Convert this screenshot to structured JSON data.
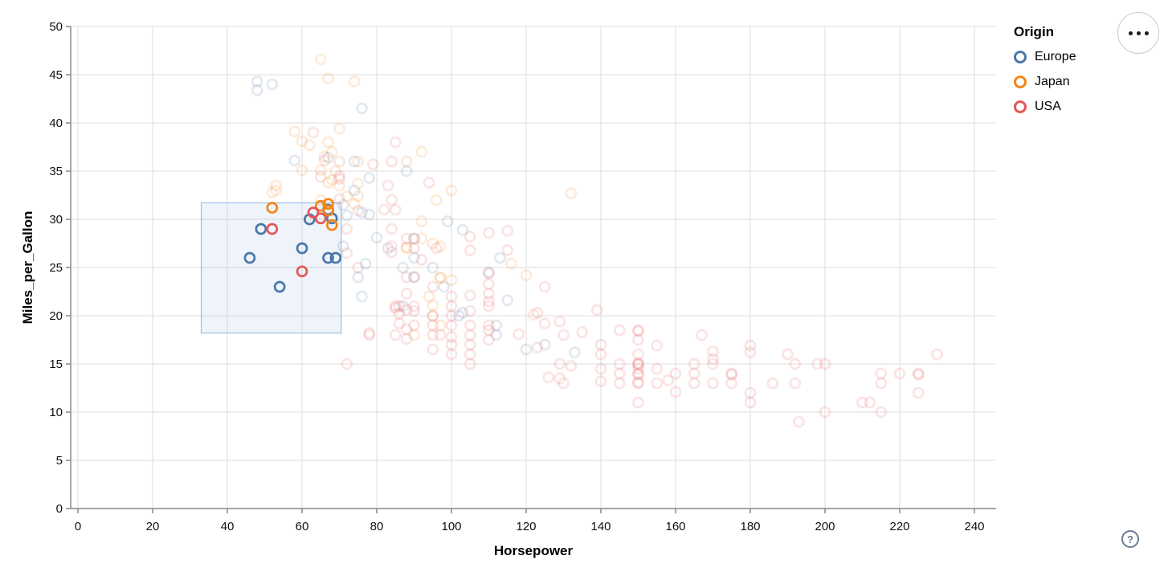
{
  "axes": {
    "x": {
      "title": "Horsepower",
      "ticks": [
        0,
        20,
        40,
        60,
        80,
        100,
        120,
        140,
        160,
        180,
        200,
        220,
        240
      ]
    },
    "y": {
      "title": "Miles_per_Gallon",
      "ticks": [
        0,
        5,
        10,
        15,
        20,
        25,
        30,
        35,
        40,
        45,
        50
      ]
    }
  },
  "legend": {
    "title": "Origin",
    "items": [
      {
        "label": "Europe",
        "color": "#4c78a8"
      },
      {
        "label": "Japan",
        "color": "#f58518"
      },
      {
        "label": "USA",
        "color": "#e45756"
      }
    ]
  },
  "controls": {
    "menu_label": "•••",
    "help_label": "?"
  },
  "chart_data": {
    "type": "scatter",
    "x_field": "Horsepower",
    "y_field": "Miles_per_Gallon",
    "xlim": [
      0,
      240
    ],
    "ylim": [
      0,
      50
    ],
    "grid": true,
    "legend_position": "right",
    "origin_colors": {
      "E": "#4c78a8",
      "J": "#f58518",
      "U": "#e45756"
    },
    "origin_names": {
      "E": "Europe",
      "J": "Japan",
      "U": "USA"
    },
    "brush": {
      "x": [
        33,
        70.5
      ],
      "y": [
        18.2,
        31.7
      ],
      "fill": "#7ba7dc",
      "stroke": "#90b4e4"
    },
    "unselected_opacity": 0.16,
    "point_format": [
      "Horsepower",
      "Miles_per_Gallon",
      "origin",
      "selected"
    ],
    "points": [
      [
        46,
        26,
        "E",
        1
      ],
      [
        49,
        29,
        "E",
        1
      ],
      [
        54,
        23,
        "E",
        1
      ],
      [
        60,
        27,
        "E",
        1
      ],
      [
        62,
        30,
        "E",
        1
      ],
      [
        67,
        31,
        "E",
        1
      ],
      [
        68,
        30.1,
        "E",
        1
      ],
      [
        67,
        26,
        "E",
        1
      ],
      [
        69,
        26,
        "E",
        1
      ],
      [
        52,
        31.2,
        "J",
        1
      ],
      [
        65,
        31.4,
        "J",
        1
      ],
      [
        67,
        31.6,
        "J",
        1
      ],
      [
        67,
        30.9,
        "J",
        1
      ],
      [
        68,
        29.4,
        "J",
        1
      ],
      [
        52,
        29,
        "U",
        1
      ],
      [
        60,
        24.6,
        "U",
        1
      ],
      [
        63,
        30.7,
        "U",
        1
      ],
      [
        65,
        30.1,
        "U",
        1
      ],
      [
        48,
        44.3,
        "E",
        0
      ],
      [
        52,
        44,
        "E",
        0
      ],
      [
        48,
        43.4,
        "E",
        0
      ],
      [
        76,
        41.5,
        "E",
        0
      ],
      [
        74,
        36,
        "E",
        0
      ],
      [
        58,
        36.1,
        "E",
        0
      ],
      [
        67,
        36.4,
        "E",
        0
      ],
      [
        88,
        35,
        "E",
        0
      ],
      [
        78,
        34.3,
        "E",
        0
      ],
      [
        74,
        33,
        "E",
        0
      ],
      [
        71,
        31.5,
        "E",
        0
      ],
      [
        76,
        30.7,
        "E",
        0
      ],
      [
        78,
        30.5,
        "E",
        0
      ],
      [
        72,
        30.4,
        "E",
        0
      ],
      [
        80,
        28.1,
        "E",
        0
      ],
      [
        90,
        28,
        "E",
        0
      ],
      [
        83,
        27,
        "E",
        0
      ],
      [
        71,
        27.2,
        "E",
        0
      ],
      [
        87,
        25,
        "E",
        0
      ],
      [
        90,
        24,
        "E",
        0
      ],
      [
        95,
        25,
        "E",
        0
      ],
      [
        113,
        26,
        "E",
        0
      ],
      [
        90,
        26,
        "E",
        0
      ],
      [
        75,
        24,
        "E",
        0
      ],
      [
        76,
        22,
        "E",
        0
      ],
      [
        87,
        21,
        "E",
        0
      ],
      [
        110,
        24.5,
        "E",
        0
      ],
      [
        103,
        20.3,
        "E",
        0
      ],
      [
        102,
        20,
        "E",
        0
      ],
      [
        98,
        23,
        "E",
        0
      ],
      [
        115,
        21.6,
        "E",
        0
      ],
      [
        120,
        16.5,
        "E",
        0
      ],
      [
        133,
        16.2,
        "E",
        0
      ],
      [
        125,
        17,
        "E",
        0
      ],
      [
        112,
        18,
        "E",
        0
      ],
      [
        112,
        19,
        "E",
        0
      ],
      [
        77,
        25.4,
        "E",
        0
      ],
      [
        99,
        29.8,
        "E",
        0
      ],
      [
        103,
        28.9,
        "E",
        0
      ],
      [
        65,
        46.6,
        "J",
        0
      ],
      [
        67,
        44.6,
        "J",
        0
      ],
      [
        74,
        44.3,
        "J",
        0
      ],
      [
        70,
        39.4,
        "J",
        0
      ],
      [
        58,
        39.1,
        "J",
        0
      ],
      [
        62,
        37.7,
        "J",
        0
      ],
      [
        60,
        38.1,
        "J",
        0
      ],
      [
        67,
        38,
        "J",
        0
      ],
      [
        66,
        36.5,
        "J",
        0
      ],
      [
        75,
        36,
        "J",
        0
      ],
      [
        68,
        37,
        "J",
        0
      ],
      [
        88,
        36,
        "J",
        0
      ],
      [
        92,
        37,
        "J",
        0
      ],
      [
        69,
        35,
        "J",
        0
      ],
      [
        60,
        35.1,
        "J",
        0
      ],
      [
        65,
        35.1,
        "J",
        0
      ],
      [
        75,
        33.7,
        "J",
        0
      ],
      [
        67,
        33.8,
        "J",
        0
      ],
      [
        53,
        33,
        "J",
        0
      ],
      [
        53,
        33.5,
        "J",
        0
      ],
      [
        52,
        32.8,
        "J",
        0
      ],
      [
        68,
        34.1,
        "J",
        0
      ],
      [
        75,
        32.4,
        "J",
        0
      ],
      [
        72,
        32.4,
        "J",
        0
      ],
      [
        96,
        32,
        "J",
        0
      ],
      [
        100,
        33,
        "J",
        0
      ],
      [
        132,
        32.7,
        "J",
        0
      ],
      [
        65,
        32,
        "J",
        0
      ],
      [
        70,
        33.5,
        "J",
        0
      ],
      [
        74,
        31.6,
        "J",
        0
      ],
      [
        92,
        29.8,
        "J",
        0
      ],
      [
        92,
        28,
        "J",
        0
      ],
      [
        88,
        27,
        "J",
        0
      ],
      [
        88,
        27.1,
        "J",
        0
      ],
      [
        97,
        27.2,
        "J",
        0
      ],
      [
        95,
        27.5,
        "J",
        0
      ],
      [
        97,
        24,
        "J",
        0
      ],
      [
        94,
        22,
        "J",
        0
      ],
      [
        100,
        23.7,
        "J",
        0
      ],
      [
        95,
        21.1,
        "J",
        0
      ],
      [
        97,
        23.9,
        "J",
        0
      ],
      [
        95,
        20,
        "J",
        0
      ],
      [
        90,
        18,
        "J",
        0
      ],
      [
        97,
        19,
        "J",
        0
      ],
      [
        116,
        25.4,
        "J",
        0
      ],
      [
        120,
        24.2,
        "J",
        0
      ],
      [
        122,
        20.1,
        "J",
        0
      ],
      [
        63,
        39,
        "U",
        0
      ],
      [
        66,
        36.1,
        "U",
        0
      ],
      [
        70,
        36,
        "U",
        0
      ],
      [
        85,
        38,
        "U",
        0
      ],
      [
        84,
        36,
        "U",
        0
      ],
      [
        79,
        35.7,
        "U",
        0
      ],
      [
        70,
        34.5,
        "U",
        0
      ],
      [
        70,
        34.2,
        "U",
        0
      ],
      [
        65,
        34.4,
        "U",
        0
      ],
      [
        83,
        33.5,
        "U",
        0
      ],
      [
        94,
        33.8,
        "U",
        0
      ],
      [
        84,
        32,
        "U",
        0
      ],
      [
        82,
        31,
        "U",
        0
      ],
      [
        85,
        31,
        "U",
        0
      ],
      [
        70,
        32.1,
        "U",
        0
      ],
      [
        75,
        30.9,
        "U",
        0
      ],
      [
        88,
        28,
        "U",
        0
      ],
      [
        84,
        29,
        "U",
        0
      ],
      [
        90,
        27,
        "U",
        0
      ],
      [
        84,
        26.6,
        "U",
        0
      ],
      [
        84,
        27.2,
        "U",
        0
      ],
      [
        92,
        25.8,
        "U",
        0
      ],
      [
        96,
        27,
        "U",
        0
      ],
      [
        90,
        28,
        "U",
        0
      ],
      [
        72,
        29,
        "U",
        0
      ],
      [
        75,
        25,
        "U",
        0
      ],
      [
        72,
        26.5,
        "U",
        0
      ],
      [
        90,
        24,
        "U",
        0
      ],
      [
        95,
        23,
        "U",
        0
      ],
      [
        100,
        22,
        "U",
        0
      ],
      [
        105,
        26.8,
        "U",
        0
      ],
      [
        105,
        28.2,
        "U",
        0
      ],
      [
        115,
        28.8,
        "U",
        0
      ],
      [
        115,
        26.8,
        "U",
        0
      ],
      [
        110,
        28.6,
        "U",
        0
      ],
      [
        125,
        23,
        "U",
        0
      ],
      [
        86,
        21,
        "U",
        0
      ],
      [
        90,
        21,
        "U",
        0
      ],
      [
        90,
        20.5,
        "U",
        0
      ],
      [
        90,
        19,
        "U",
        0
      ],
      [
        85,
        21,
        "U",
        0
      ],
      [
        85,
        18,
        "U",
        0
      ],
      [
        86,
        20.2,
        "U",
        0
      ],
      [
        85,
        20.8,
        "U",
        0
      ],
      [
        86,
        19.2,
        "U",
        0
      ],
      [
        88,
        17.6,
        "U",
        0
      ],
      [
        88,
        18.6,
        "U",
        0
      ],
      [
        88,
        20.6,
        "U",
        0
      ],
      [
        88,
        22.3,
        "U",
        0
      ],
      [
        88,
        24,
        "U",
        0
      ],
      [
        78,
        18,
        "U",
        0
      ],
      [
        78,
        18.2,
        "U",
        0
      ],
      [
        72,
        15,
        "U",
        0
      ],
      [
        95,
        18,
        "U",
        0
      ],
      [
        95,
        20,
        "U",
        0
      ],
      [
        95,
        19,
        "U",
        0
      ],
      [
        95,
        16.5,
        "U",
        0
      ],
      [
        97,
        18,
        "U",
        0
      ],
      [
        100,
        16,
        "U",
        0
      ],
      [
        100,
        17,
        "U",
        0
      ],
      [
        100,
        17.8,
        "U",
        0
      ],
      [
        100,
        19,
        "U",
        0
      ],
      [
        100,
        20,
        "U",
        0
      ],
      [
        100,
        21,
        "U",
        0
      ],
      [
        105,
        15,
        "U",
        0
      ],
      [
        105,
        16,
        "U",
        0
      ],
      [
        105,
        17,
        "U",
        0
      ],
      [
        105,
        18,
        "U",
        0
      ],
      [
        105,
        19,
        "U",
        0
      ],
      [
        105,
        20.5,
        "U",
        0
      ],
      [
        105,
        22.1,
        "U",
        0
      ],
      [
        110,
        17.5,
        "U",
        0
      ],
      [
        110,
        18.5,
        "U",
        0
      ],
      [
        110,
        19,
        "U",
        0
      ],
      [
        110,
        21,
        "U",
        0
      ],
      [
        110,
        21.5,
        "U",
        0
      ],
      [
        110,
        22.3,
        "U",
        0
      ],
      [
        110,
        23.3,
        "U",
        0
      ],
      [
        110,
        24.4,
        "U",
        0
      ],
      [
        118,
        18.1,
        "U",
        0
      ],
      [
        123,
        16.7,
        "U",
        0
      ],
      [
        123,
        20.3,
        "U",
        0
      ],
      [
        125,
        19.2,
        "U",
        0
      ],
      [
        129,
        19.4,
        "U",
        0
      ],
      [
        135,
        18.3,
        "U",
        0
      ],
      [
        139,
        20.6,
        "U",
        0
      ],
      [
        130,
        18,
        "U",
        0
      ],
      [
        130,
        13,
        "U",
        0
      ],
      [
        129,
        15,
        "U",
        0
      ],
      [
        132,
        14.8,
        "U",
        0
      ],
      [
        126,
        13.6,
        "U",
        0
      ],
      [
        129,
        13.5,
        "U",
        0
      ],
      [
        140,
        17,
        "U",
        0
      ],
      [
        140,
        16,
        "U",
        0
      ],
      [
        140,
        14.5,
        "U",
        0
      ],
      [
        140,
        13.2,
        "U",
        0
      ],
      [
        145,
        18.5,
        "U",
        0
      ],
      [
        145,
        15,
        "U",
        0
      ],
      [
        145,
        14,
        "U",
        0
      ],
      [
        145,
        13,
        "U",
        0
      ],
      [
        150,
        18.5,
        "U",
        0
      ],
      [
        150,
        18.4,
        "U",
        0
      ],
      [
        150,
        17.5,
        "U",
        0
      ],
      [
        150,
        16,
        "U",
        0
      ],
      [
        150,
        15,
        "U",
        0
      ],
      [
        150,
        15.1,
        "U",
        0
      ],
      [
        150,
        14.9,
        "U",
        0
      ],
      [
        150,
        14.5,
        "U",
        0
      ],
      [
        150,
        14,
        "U",
        0
      ],
      [
        150,
        13.9,
        "U",
        0
      ],
      [
        150,
        13,
        "U",
        0
      ],
      [
        150,
        13.1,
        "U",
        0
      ],
      [
        150,
        11,
        "U",
        0
      ],
      [
        155,
        16.9,
        "U",
        0
      ],
      [
        155,
        14.5,
        "U",
        0
      ],
      [
        155,
        13,
        "U",
        0
      ],
      [
        158,
        13.3,
        "U",
        0
      ],
      [
        160,
        14,
        "U",
        0
      ],
      [
        160,
        12.1,
        "U",
        0
      ],
      [
        165,
        15,
        "U",
        0
      ],
      [
        165,
        14,
        "U",
        0
      ],
      [
        165,
        13,
        "U",
        0
      ],
      [
        167,
        18,
        "U",
        0
      ],
      [
        170,
        16.3,
        "U",
        0
      ],
      [
        170,
        15.5,
        "U",
        0
      ],
      [
        170,
        15,
        "U",
        0
      ],
      [
        170,
        13,
        "U",
        0
      ],
      [
        175,
        14,
        "U",
        0
      ],
      [
        175,
        13.9,
        "U",
        0
      ],
      [
        175,
        13,
        "U",
        0
      ],
      [
        180,
        16.9,
        "U",
        0
      ],
      [
        180,
        16.2,
        "U",
        0
      ],
      [
        180,
        12,
        "U",
        0
      ],
      [
        180,
        11,
        "U",
        0
      ],
      [
        190,
        16,
        "U",
        0
      ],
      [
        192,
        15,
        "U",
        0
      ],
      [
        192,
        13,
        "U",
        0
      ],
      [
        186,
        13,
        "U",
        0
      ],
      [
        193,
        9,
        "U",
        0
      ],
      [
        198,
        15,
        "U",
        0
      ],
      [
        200,
        15,
        "U",
        0
      ],
      [
        200,
        10,
        "U",
        0
      ],
      [
        210,
        11,
        "U",
        0
      ],
      [
        212,
        11,
        "U",
        0
      ],
      [
        215,
        14,
        "U",
        0
      ],
      [
        215,
        13,
        "U",
        0
      ],
      [
        215,
        10,
        "U",
        0
      ],
      [
        220,
        14,
        "U",
        0
      ],
      [
        225,
        14,
        "U",
        0
      ],
      [
        225,
        13.9,
        "U",
        0
      ],
      [
        225,
        12,
        "U",
        0
      ],
      [
        230,
        16,
        "U",
        0
      ]
    ]
  }
}
